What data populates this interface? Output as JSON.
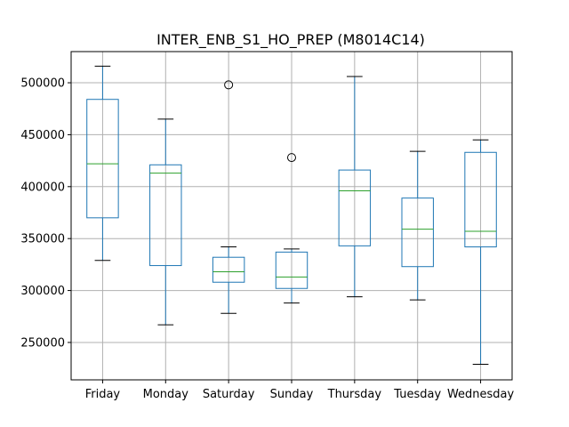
{
  "chart_data": {
    "type": "box",
    "title": "INTER_ENB_S1_HO_PREP (M8014C14)",
    "xlabel": "",
    "ylabel": "",
    "categories": [
      "Friday",
      "Monday",
      "Saturday",
      "Sunday",
      "Thursday",
      "Tuesday",
      "Wednesday"
    ],
    "boxes": [
      {
        "category": "Friday",
        "whisker_low": 329000,
        "q1": 370000,
        "median": 422000,
        "q3": 484000,
        "whisker_high": 516000,
        "outliers": []
      },
      {
        "category": "Monday",
        "whisker_low": 267000,
        "q1": 324000,
        "median": 413000,
        "q3": 421000,
        "whisker_high": 465000,
        "outliers": []
      },
      {
        "category": "Saturday",
        "whisker_low": 278000,
        "q1": 308000,
        "median": 318000,
        "q3": 332000,
        "whisker_high": 342000,
        "outliers": [
          498000
        ]
      },
      {
        "category": "Sunday",
        "whisker_low": 288000,
        "q1": 302000,
        "median": 313000,
        "q3": 337000,
        "whisker_high": 340000,
        "outliers": [
          428000
        ]
      },
      {
        "category": "Thursday",
        "whisker_low": 294000,
        "q1": 343000,
        "median": 396000,
        "q3": 416000,
        "whisker_high": 506000,
        "outliers": []
      },
      {
        "category": "Tuesday",
        "whisker_low": 291000,
        "q1": 323000,
        "median": 359000,
        "q3": 389000,
        "whisker_high": 434000,
        "outliers": []
      },
      {
        "category": "Wednesday",
        "whisker_low": 229000,
        "q1": 342000,
        "median": 357000,
        "q3": 433000,
        "whisker_high": 445000,
        "outliers": []
      }
    ],
    "ylim": [
      214000,
      530000
    ],
    "yticks": [
      250000,
      300000,
      350000,
      400000,
      450000,
      500000
    ],
    "grid": true,
    "colors": {
      "box": "#1f77b4",
      "median": "#2ca02c",
      "whisker_cap": "#000000",
      "grid": "#b0b0b0",
      "outlier": "#000000"
    }
  }
}
